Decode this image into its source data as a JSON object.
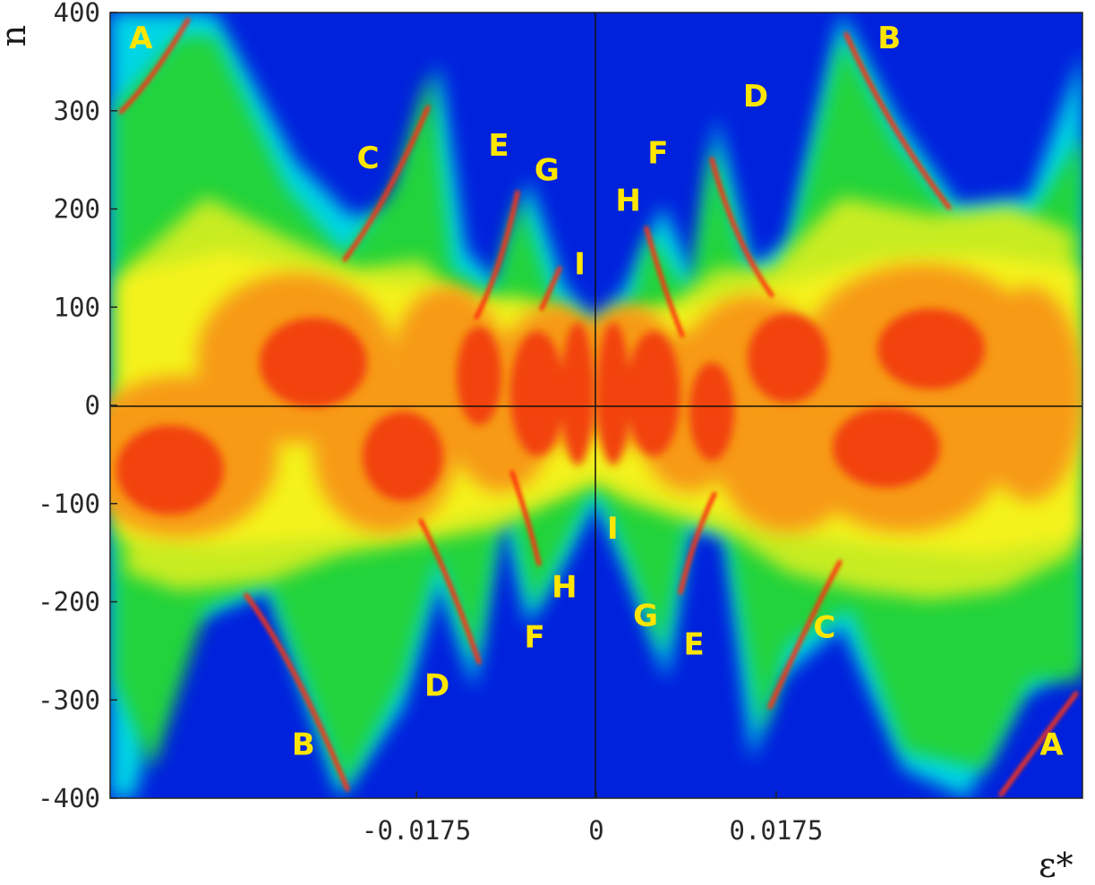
{
  "chart_data": {
    "type": "heatmap",
    "title": "",
    "xlabel": "ε*",
    "ylabel": "n",
    "xlim": [
      -0.0473,
      0.0473
    ],
    "ylim": [
      -400,
      400
    ],
    "x_ticks": [
      {
        "value": -0.0175,
        "label": "-0.0175"
      },
      {
        "value": 0,
        "label": "0"
      },
      {
        "value": 0.0175,
        "label": "0.0175"
      }
    ],
    "y_ticks": [
      {
        "value": 400,
        "label": "400"
      },
      {
        "value": 300,
        "label": "300"
      },
      {
        "value": 200,
        "label": "200"
      },
      {
        "value": 100,
        "label": "100"
      },
      {
        "value": 0,
        "label": "0"
      },
      {
        "value": -100,
        "label": "-100"
      },
      {
        "value": -200,
        "label": "-200"
      },
      {
        "value": -300,
        "label": "-300"
      },
      {
        "value": -400,
        "label": "-400"
      }
    ],
    "grid": false,
    "colormap": [
      "#0022dd",
      "#00d6e6",
      "#22d33a",
      "#a8e61e",
      "#f4f21c",
      "#f79a12",
      "#f24210"
    ],
    "background_color": "#0022dd",
    "reference_lines": [
      {
        "axis": "x",
        "value": 0
      },
      {
        "axis": "y",
        "value": 0
      }
    ],
    "annotations": [
      {
        "text": "A",
        "x": -0.0443,
        "y": 372
      },
      {
        "text": "B",
        "x": 0.0285,
        "y": 372
      },
      {
        "text": "D",
        "x": 0.0155,
        "y": 313
      },
      {
        "text": "C",
        "x": -0.0222,
        "y": 250
      },
      {
        "text": "E",
        "x": -0.0095,
        "y": 263
      },
      {
        "text": "F",
        "x": 0.006,
        "y": 255
      },
      {
        "text": "G",
        "x": -0.0048,
        "y": 238
      },
      {
        "text": "H",
        "x": 0.0031,
        "y": 207
      },
      {
        "text": "I",
        "x": -0.0016,
        "y": 142
      },
      {
        "text": "I",
        "x": 0.0016,
        "y": -127
      },
      {
        "text": "H",
        "x": -0.0031,
        "y": -187
      },
      {
        "text": "G",
        "x": 0.0048,
        "y": -216
      },
      {
        "text": "E",
        "x": 0.0095,
        "y": -245
      },
      {
        "text": "F",
        "x": -0.006,
        "y": -238
      },
      {
        "text": "C",
        "x": 0.0222,
        "y": -228
      },
      {
        "text": "D",
        "x": -0.0155,
        "y": -287
      },
      {
        "text": "B",
        "x": -0.0285,
        "y": -347
      },
      {
        "text": "A",
        "x": 0.0443,
        "y": -347
      }
    ]
  }
}
